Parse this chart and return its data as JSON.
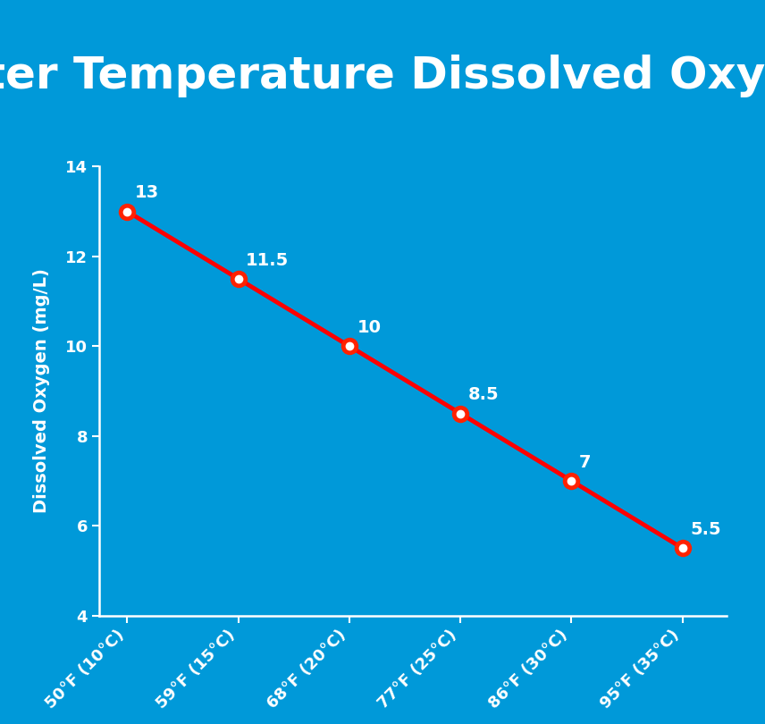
{
  "title": "Water Temperature Dissolved Oxygen",
  "x_labels": [
    "50°F (10°C)",
    "59°F (15°C)",
    "68°F (20°C)",
    "77°F (25°C)",
    "86°F (30°C)",
    "95°F (35°C)"
  ],
  "y_values": [
    13.0,
    11.5,
    10.0,
    8.5,
    7.0,
    5.5
  ],
  "y_labels": [
    "13",
    "11.5",
    "10",
    "8.5",
    "7",
    "5.5"
  ],
  "x_values": [
    0,
    1,
    2,
    3,
    4,
    5
  ],
  "ylabel": "Dissolved Oxygen (mg/L)",
  "ylim": [
    4,
    14
  ],
  "yticks": [
    4,
    6,
    8,
    10,
    12,
    14
  ],
  "background_color": "#0099D9",
  "plot_bg_color": "#0099D9",
  "line_color": "#FF0000",
  "marker_edge_color": "#FF2200",
  "marker_inner_color": "#FFFFFF",
  "text_color": "#FFFFFF",
  "title_fontsize": 36,
  "label_fontsize": 14,
  "tick_fontsize": 13,
  "annotation_fontsize": 14,
  "spine_color": "#FFFFFF",
  "tick_color": "#FFFFFF",
  "annotation_offsets_x": [
    0.07,
    0.07,
    0.07,
    0.07,
    0.07,
    0.07
  ],
  "annotation_offsets_y": [
    0.22,
    0.22,
    0.22,
    0.22,
    0.22,
    0.22
  ]
}
